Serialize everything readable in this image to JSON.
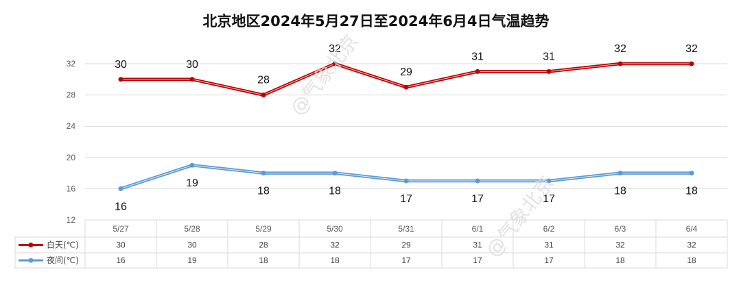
{
  "chart_data": {
    "type": "line",
    "title": "北京地区2024年5月27日至2024年6月4日气温趋势",
    "categories": [
      "5/27",
      "5/28",
      "5/29",
      "5/30",
      "5/31",
      "6/1",
      "6/2",
      "6/3",
      "6/4"
    ],
    "series": [
      {
        "name": "白天(℃)",
        "color": "#c00000",
        "values": [
          30,
          30,
          28,
          32,
          29,
          31,
          31,
          32,
          32
        ]
      },
      {
        "name": "夜间(℃)",
        "color": "#5b9bd5",
        "values": [
          16,
          19,
          18,
          18,
          17,
          17,
          17,
          18,
          18
        ]
      }
    ],
    "ylim": [
      12,
      32
    ],
    "yticks": [
      12,
      16,
      20,
      24,
      28,
      32
    ],
    "grid": true,
    "legend": "data-table",
    "watermark": "@气象北京"
  }
}
